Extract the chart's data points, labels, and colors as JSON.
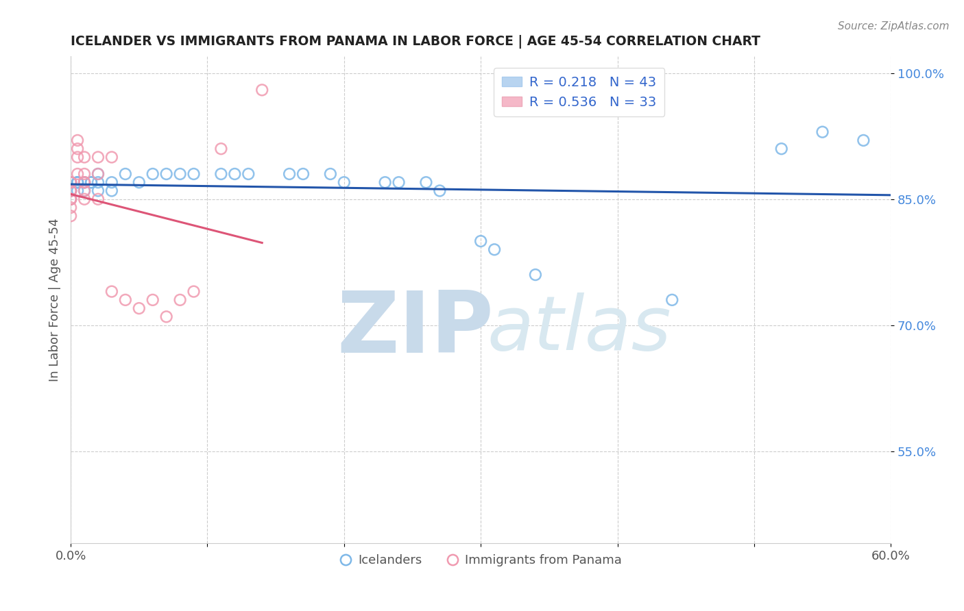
{
  "title": "ICELANDER VS IMMIGRANTS FROM PANAMA IN LABOR FORCE | AGE 45-54 CORRELATION CHART",
  "source_text": "Source: ZipAtlas.com",
  "ylabel": "In Labor Force | Age 45-54",
  "xlim": [
    0.0,
    0.6
  ],
  "ylim": [
    0.44,
    1.02
  ],
  "xticks": [
    0.0,
    0.1,
    0.2,
    0.3,
    0.4,
    0.5,
    0.6
  ],
  "yticks": [
    0.55,
    0.7,
    0.85,
    1.0
  ],
  "yticklabels": [
    "55.0%",
    "70.0%",
    "85.0%",
    "100.0%"
  ],
  "blue_color": "#7eb8e8",
  "pink_color": "#f09ab0",
  "blue_line_color": "#2255aa",
  "pink_line_color": "#dd5577",
  "icelanders_x": [
    0.0,
    0.0,
    0.0,
    0.0,
    0.0,
    0.005,
    0.005,
    0.005,
    0.005,
    0.01,
    0.01,
    0.01,
    0.015,
    0.015,
    0.02,
    0.02,
    0.02,
    0.03,
    0.03,
    0.04,
    0.05,
    0.06,
    0.07,
    0.08,
    0.09,
    0.11,
    0.12,
    0.13,
    0.16,
    0.17,
    0.19,
    0.2,
    0.23,
    0.24,
    0.26,
    0.27,
    0.3,
    0.31,
    0.34,
    0.44,
    0.52,
    0.55,
    0.58
  ],
  "icelanders_y": [
    0.87,
    0.87,
    0.86,
    0.86,
    0.85,
    0.87,
    0.87,
    0.87,
    0.86,
    0.87,
    0.87,
    0.86,
    0.87,
    0.87,
    0.88,
    0.87,
    0.86,
    0.87,
    0.86,
    0.88,
    0.87,
    0.88,
    0.88,
    0.88,
    0.88,
    0.88,
    0.88,
    0.88,
    0.88,
    0.88,
    0.88,
    0.87,
    0.87,
    0.87,
    0.87,
    0.86,
    0.8,
    0.79,
    0.76,
    0.73,
    0.91,
    0.93,
    0.92
  ],
  "panama_x": [
    0.0,
    0.0,
    0.0,
    0.0,
    0.0,
    0.0,
    0.0,
    0.0,
    0.0,
    0.0,
    0.005,
    0.005,
    0.005,
    0.005,
    0.01,
    0.01,
    0.01,
    0.01,
    0.01,
    0.01,
    0.02,
    0.02,
    0.02,
    0.03,
    0.03,
    0.04,
    0.05,
    0.06,
    0.07,
    0.08,
    0.09,
    0.11,
    0.14
  ],
  "panama_y": [
    0.87,
    0.87,
    0.86,
    0.86,
    0.86,
    0.85,
    0.85,
    0.85,
    0.84,
    0.83,
    0.92,
    0.91,
    0.9,
    0.88,
    0.9,
    0.88,
    0.87,
    0.87,
    0.86,
    0.85,
    0.9,
    0.88,
    0.85,
    0.9,
    0.74,
    0.73,
    0.72,
    0.73,
    0.71,
    0.73,
    0.74,
    0.91,
    0.98
  ],
  "legend_r1": "R = 0.218   N = 43",
  "legend_r2": "R = 0.536   N = 33",
  "legend_color1": "#b8d4f0",
  "legend_color2": "#f5b8c8",
  "label_icelanders": "Icelanders",
  "label_panama": "Immigrants from Panama",
  "watermark_zip": "ZIP",
  "watermark_atlas": "atlas"
}
